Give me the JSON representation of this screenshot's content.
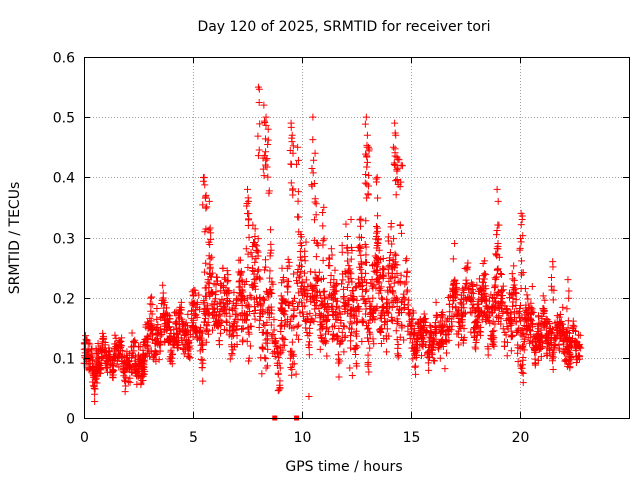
{
  "chart_data": {
    "type": "scatter",
    "title": "Day 120 of 2025, SRMTID for receiver tori",
    "xlabel": "GPS time / hours",
    "ylabel": "SRMTID / TECUs",
    "xlim": [
      0,
      25
    ],
    "ylim": [
      0,
      0.6
    ],
    "xticks": [
      0,
      5,
      10,
      15,
      20
    ],
    "yticks": [
      0,
      0.1,
      0.2,
      0.3,
      0.4,
      0.5,
      0.6
    ],
    "ytick_labels": [
      "0",
      "0.1",
      "0.2",
      "0.3",
      "0.4",
      "0.5",
      "0.6"
    ],
    "grid": true,
    "marker": "+",
    "color": "#ff0000",
    "gap_marker_x": [
      8.75,
      9.75
    ],
    "envelope": {
      "x": [
        0.0,
        0.5,
        1.0,
        1.5,
        2.0,
        2.5,
        3.0,
        3.5,
        4.0,
        4.5,
        5.0,
        5.5,
        6.0,
        6.5,
        7.0,
        7.5,
        8.0,
        8.5,
        9.0,
        9.5,
        10.0,
        10.5,
        11.0,
        11.5,
        12.0,
        12.5,
        13.0,
        13.5,
        14.0,
        14.5,
        15.0,
        15.5,
        16.0,
        16.5,
        17.0,
        17.5,
        18.0,
        18.5,
        19.0,
        19.5,
        20.0,
        20.5,
        21.0,
        21.5,
        22.0,
        22.5,
        22.8
      ],
      "center": [
        0.1,
        0.09,
        0.1,
        0.1,
        0.09,
        0.09,
        0.13,
        0.15,
        0.14,
        0.14,
        0.15,
        0.17,
        0.19,
        0.18,
        0.17,
        0.19,
        0.21,
        0.16,
        0.14,
        0.17,
        0.2,
        0.2,
        0.19,
        0.17,
        0.19,
        0.2,
        0.21,
        0.2,
        0.21,
        0.2,
        0.15,
        0.13,
        0.13,
        0.14,
        0.18,
        0.2,
        0.19,
        0.18,
        0.19,
        0.18,
        0.15,
        0.15,
        0.14,
        0.14,
        0.13,
        0.12,
        0.11
      ],
      "spread": [
        0.04,
        0.05,
        0.04,
        0.04,
        0.04,
        0.05,
        0.07,
        0.06,
        0.05,
        0.06,
        0.06,
        0.09,
        0.08,
        0.07,
        0.08,
        0.1,
        0.12,
        0.13,
        0.1,
        0.12,
        0.13,
        0.11,
        0.09,
        0.1,
        0.11,
        0.13,
        0.12,
        0.11,
        0.12,
        0.11,
        0.06,
        0.05,
        0.05,
        0.05,
        0.07,
        0.07,
        0.08,
        0.08,
        0.08,
        0.07,
        0.08,
        0.06,
        0.06,
        0.06,
        0.05,
        0.05,
        0.04
      ]
    },
    "spikes": [
      {
        "x": 5.5,
        "y": 0.4
      },
      {
        "x": 5.6,
        "y": 0.37
      },
      {
        "x": 5.75,
        "y": 0.36
      },
      {
        "x": 7.5,
        "y": 0.38
      },
      {
        "x": 7.55,
        "y": 0.36
      },
      {
        "x": 8.0,
        "y": 0.55
      },
      {
        "x": 8.25,
        "y": 0.52
      },
      {
        "x": 8.35,
        "y": 0.5
      },
      {
        "x": 8.45,
        "y": 0.48
      },
      {
        "x": 9.5,
        "y": 0.49
      },
      {
        "x": 9.55,
        "y": 0.47
      },
      {
        "x": 9.8,
        "y": 0.45
      },
      {
        "x": 10.5,
        "y": 0.5
      },
      {
        "x": 10.6,
        "y": 0.44
      },
      {
        "x": 11.0,
        "y": 0.35
      },
      {
        "x": 12.25,
        "y": 0.33
      },
      {
        "x": 12.95,
        "y": 0.5
      },
      {
        "x": 13.0,
        "y": 0.47
      },
      {
        "x": 13.05,
        "y": 0.45
      },
      {
        "x": 13.45,
        "y": 0.4
      },
      {
        "x": 14.25,
        "y": 0.49
      },
      {
        "x": 14.3,
        "y": 0.47
      },
      {
        "x": 14.4,
        "y": 0.43
      },
      {
        "x": 14.55,
        "y": 0.42
      },
      {
        "x": 17.0,
        "y": 0.29
      },
      {
        "x": 18.95,
        "y": 0.38
      },
      {
        "x": 19.0,
        "y": 0.36
      },
      {
        "x": 20.05,
        "y": 0.34
      },
      {
        "x": 20.1,
        "y": 0.33
      },
      {
        "x": 21.5,
        "y": 0.26
      },
      {
        "x": 22.2,
        "y": 0.23
      }
    ]
  }
}
